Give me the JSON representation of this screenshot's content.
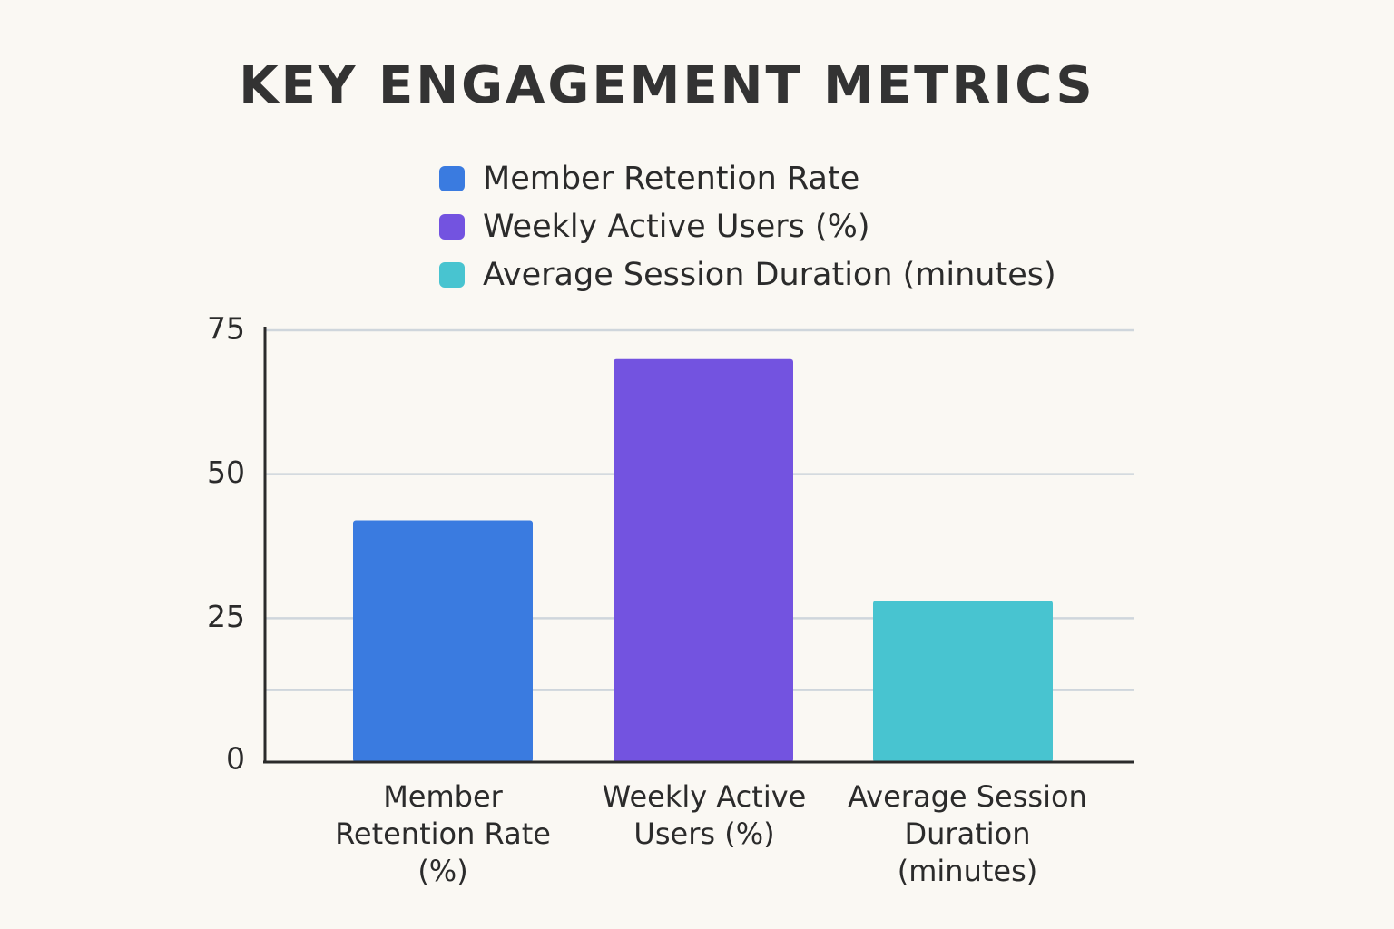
{
  "chart_data": {
    "type": "bar",
    "title": "KEY ENGAGEMENT METRICS",
    "categories": [
      "Member Retention Rate (%)",
      "Weekly Active Users (%)",
      "Average Session Duration (minutes)"
    ],
    "category_lines": [
      [
        "Member",
        "Retention Rate",
        "(%)"
      ],
      [
        "Weekly Active",
        "Users (%)"
      ],
      [
        "Average Session",
        "Duration",
        "(minutes)"
      ]
    ],
    "values": [
      42,
      70,
      28
    ],
    "colors": [
      "#3a7be0",
      "#7353e0",
      "#48c4d0"
    ],
    "legend": [
      {
        "label": "Member Retention Rate",
        "color": "#3a7be0"
      },
      {
        "label": "Weekly Active Users (%)",
        "color": "#7353e0"
      },
      {
        "label": "Average Session Duration (minutes)",
        "color": "#48c4d0"
      }
    ],
    "yticks": [
      0,
      25,
      50,
      75
    ],
    "gridlines": [
      25,
      50,
      75
    ],
    "extra_gridline_y": 12.5,
    "ylim": [
      0,
      75
    ],
    "xlabel": "",
    "ylabel": ""
  }
}
